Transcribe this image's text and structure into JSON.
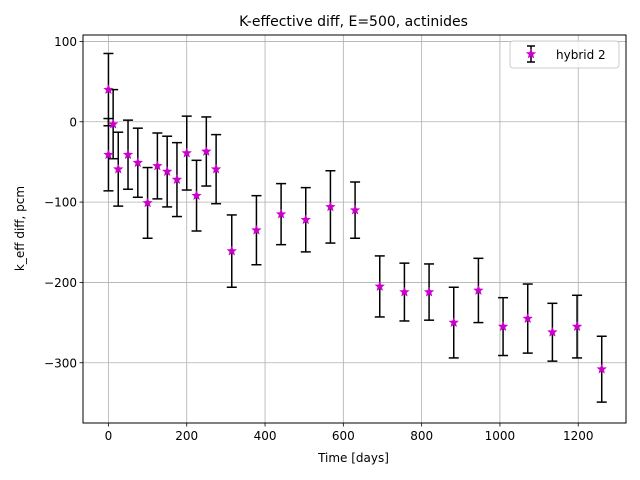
{
  "chart_data": {
    "type": "scatter",
    "title": "K-effective diff, E=500, actinides",
    "xlabel": "Time [days]",
    "ylabel": "k_eff diff, pcm",
    "xlim": [
      -65,
      1322
    ],
    "ylim": [
      -375,
      108
    ],
    "xticks": [
      0,
      200,
      400,
      600,
      800,
      1000,
      1200
    ],
    "yticks": [
      100,
      0,
      -100,
      -200,
      -300
    ],
    "xtick_labels": [
      "0",
      "200",
      "400",
      "600",
      "800",
      "1000",
      "1200"
    ],
    "ytick_labels": [
      "100",
      "0",
      "−100",
      "−200",
      "−300"
    ],
    "grid": true,
    "legend_position": "top-right",
    "series": [
      {
        "name": "hybrid 2",
        "marker": "star",
        "marker_color": "#cc00cc",
        "errorbar_color": "#000000",
        "points": [
          {
            "x": 0,
            "y": 40,
            "err": 45
          },
          {
            "x": 0,
            "y": -41,
            "err": 45
          },
          {
            "x": 12,
            "y": -3,
            "err": 43
          },
          {
            "x": 25,
            "y": -59,
            "err": 46
          },
          {
            "x": 50,
            "y": -41,
            "err": 43
          },
          {
            "x": 75,
            "y": -51,
            "err": 43
          },
          {
            "x": 100,
            "y": -101,
            "err": 44
          },
          {
            "x": 125,
            "y": -55,
            "err": 41
          },
          {
            "x": 150,
            "y": -62,
            "err": 44
          },
          {
            "x": 175,
            "y": -72,
            "err": 46
          },
          {
            "x": 200,
            "y": -39,
            "err": 46
          },
          {
            "x": 225,
            "y": -92,
            "err": 44
          },
          {
            "x": 250,
            "y": -37,
            "err": 43
          },
          {
            "x": 275,
            "y": -59,
            "err": 43
          },
          {
            "x": 315,
            "y": -161,
            "err": 45
          },
          {
            "x": 378,
            "y": -135,
            "err": 43
          },
          {
            "x": 441,
            "y": -115,
            "err": 38
          },
          {
            "x": 504,
            "y": -122,
            "err": 40
          },
          {
            "x": 567,
            "y": -106,
            "err": 45
          },
          {
            "x": 630,
            "y": -110,
            "err": 35
          },
          {
            "x": 693,
            "y": -205,
            "err": 38
          },
          {
            "x": 756,
            "y": -212,
            "err": 36
          },
          {
            "x": 819,
            "y": -212,
            "err": 35
          },
          {
            "x": 882,
            "y": -250,
            "err": 44
          },
          {
            "x": 945,
            "y": -210,
            "err": 40
          },
          {
            "x": 1008,
            "y": -255,
            "err": 36
          },
          {
            "x": 1071,
            "y": -245,
            "err": 43
          },
          {
            "x": 1134,
            "y": -262,
            "err": 36
          },
          {
            "x": 1197,
            "y": -255,
            "err": 39
          },
          {
            "x": 1260,
            "y": -308,
            "err": 41
          }
        ]
      }
    ]
  }
}
